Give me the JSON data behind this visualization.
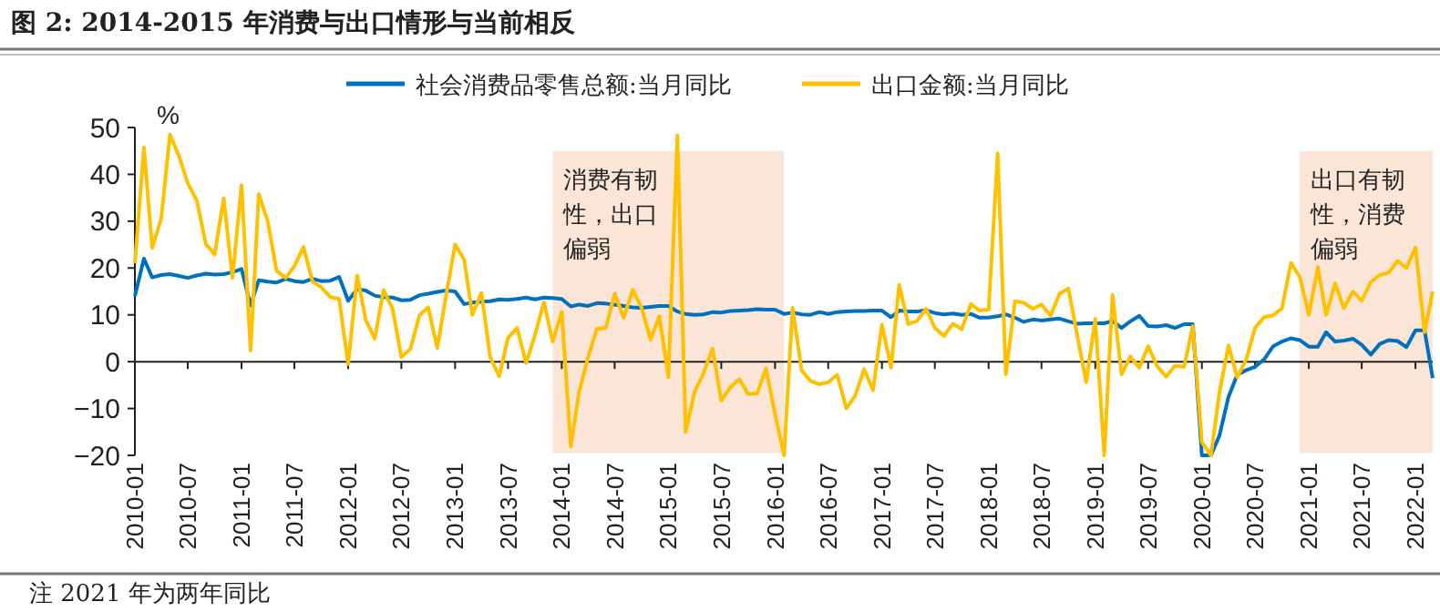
{
  "chart_data": {
    "type": "line",
    "title": "图 2: 2014-2015 年消费与出口情形与当前相反",
    "ylabel": "%",
    "annotations": [
      "注 2021 年为两年同比"
    ],
    "legend": "top",
    "line_style": "solid",
    "marker": "none",
    "xlim": [
      "2010-01",
      "2022-03"
    ],
    "x": [
      "2010-01",
      "2010-02",
      "2010-03",
      "2010-04",
      "2010-05",
      "2010-06",
      "2010-07",
      "2010-08",
      "2010-09",
      "2010-10",
      "2010-11",
      "2010-12",
      "2011-01",
      "2011-02",
      "2011-03",
      "2011-04",
      "2011-05",
      "2011-06",
      "2011-07",
      "2011-08",
      "2011-09",
      "2011-10",
      "2011-11",
      "2011-12",
      "2012-01",
      "2012-02",
      "2012-03",
      "2012-04",
      "2012-05",
      "2012-06",
      "2012-07",
      "2012-08",
      "2012-09",
      "2012-10",
      "2012-11",
      "2012-12",
      "2013-01",
      "2013-02",
      "2013-03",
      "2013-04",
      "2013-05",
      "2013-06",
      "2013-07",
      "2013-08",
      "2013-09",
      "2013-10",
      "2013-11",
      "2013-12",
      "2014-01",
      "2014-02",
      "2014-03",
      "2014-04",
      "2014-05",
      "2014-06",
      "2014-07",
      "2014-08",
      "2014-09",
      "2014-10",
      "2014-11",
      "2014-12",
      "2015-01",
      "2015-02",
      "2015-03",
      "2015-04",
      "2015-05",
      "2015-06",
      "2015-07",
      "2015-08",
      "2015-09",
      "2015-10",
      "2015-11",
      "2015-12",
      "2016-01",
      "2016-02",
      "2016-03",
      "2016-04",
      "2016-05",
      "2016-06",
      "2016-07",
      "2016-08",
      "2016-09",
      "2016-10",
      "2016-11",
      "2016-12",
      "2017-01",
      "2017-02",
      "2017-03",
      "2017-04",
      "2017-05",
      "2017-06",
      "2017-07",
      "2017-08",
      "2017-09",
      "2017-10",
      "2017-11",
      "2017-12",
      "2018-01",
      "2018-02",
      "2018-03",
      "2018-04",
      "2018-05",
      "2018-06",
      "2018-07",
      "2018-08",
      "2018-09",
      "2018-10",
      "2018-11",
      "2018-12",
      "2019-01",
      "2019-02",
      "2019-03",
      "2019-04",
      "2019-05",
      "2019-06",
      "2019-07",
      "2019-08",
      "2019-09",
      "2019-10",
      "2019-11",
      "2019-12",
      "2020-01",
      "2020-02",
      "2020-03",
      "2020-04",
      "2020-05",
      "2020-06",
      "2020-07",
      "2020-08",
      "2020-09",
      "2020-10",
      "2020-11",
      "2020-12",
      "2021-01",
      "2021-02",
      "2021-03",
      "2021-04",
      "2021-05",
      "2021-06",
      "2021-07",
      "2021-08",
      "2021-09",
      "2021-10",
      "2021-11",
      "2021-12",
      "2022-01",
      "2022-02",
      "2022-03"
    ],
    "xticks": [
      "2010-01",
      "2010-07",
      "2011-01",
      "2011-07",
      "2012-01",
      "2012-07",
      "2013-01",
      "2013-07",
      "2014-01",
      "2014-07",
      "2015-01",
      "2015-07",
      "2016-01",
      "2016-07",
      "2017-01",
      "2017-07",
      "2018-01",
      "2018-07",
      "2019-01",
      "2019-07",
      "2020-01",
      "2020-07",
      "2021-01",
      "2021-07",
      "2022-01"
    ],
    "ylim": [
      -20,
      50
    ],
    "yticks": [
      -20,
      -10,
      0,
      10,
      20,
      30,
      40,
      50
    ],
    "bands": [
      {
        "axis": "x",
        "from": "2013-12",
        "to": "2016-02",
        "label": "消费有韧性，出口偏弱",
        "color": "#fbe5d6"
      },
      {
        "axis": "x",
        "from": "2020-12",
        "to": "2022-03",
        "label": "出口有韧性，消费偏弱",
        "color": "#fbe5d6"
      }
    ],
    "series": [
      {
        "name": "社会消费品零售总额:当月同比",
        "color": "#0070c0",
        "values": [
          14,
          22,
          18,
          18.5,
          18.7,
          18.3,
          17.9,
          18.4,
          18.8,
          18.6,
          18.7,
          19.1,
          19.8,
          12,
          17.4,
          17.1,
          16.9,
          17.7,
          17.2,
          17,
          17.7,
          17.2,
          17.3,
          18.1,
          13,
          15.5,
          15.2,
          14.1,
          13.8,
          13.7,
          13.1,
          13.2,
          14.2,
          14.5,
          14.9,
          15.2,
          15,
          12.3,
          12.6,
          12.8,
          12.9,
          13.3,
          13.2,
          13.4,
          13.7,
          13.3,
          13.7,
          13.6,
          13.4,
          11.8,
          12.2,
          11.9,
          12.5,
          12.4,
          12.2,
          11.9,
          11.6,
          11.5,
          11.7,
          11.9,
          11.9,
          10.7,
          10.2,
          10,
          10.1,
          10.6,
          10.5,
          10.8,
          10.9,
          11,
          11.2,
          11.1,
          11.1,
          10.2,
          10.5,
          10.1,
          10,
          10.6,
          10.2,
          10.6,
          10.7,
          10.8,
          10.8,
          10.9,
          10.9,
          9.5,
          10.9,
          10.7,
          10.7,
          11,
          10.4,
          10.1,
          10.3,
          10,
          10.2,
          9.4,
          9.4,
          9.7,
          10.1,
          9.4,
          8.5,
          9,
          8.8,
          9,
          9.2,
          8.6,
          8.1,
          8.2,
          8.2,
          8.2,
          8.7,
          7.2,
          8.6,
          9.8,
          7.6,
          7.5,
          7.8,
          7.2,
          8,
          8,
          -20,
          -20,
          -15.8,
          -7.5,
          -2.8,
          -1.8,
          -1.1,
          0.5,
          3.3,
          4.3,
          5,
          4.6,
          3.2,
          3.2,
          6.3,
          4.3,
          4.5,
          4.9,
          3.6,
          1.5,
          3.8,
          4.6,
          4.4,
          3.1,
          6.7,
          6.7,
          -3.5
        ]
      },
      {
        "name": "出口金额:当月同比",
        "color": "#ffc000",
        "values": [
          21,
          45.7,
          24.3,
          30.5,
          48.5,
          43.9,
          38.1,
          34.4,
          25.1,
          22.9,
          34.9,
          17.9,
          37.7,
          2.4,
          35.8,
          29.9,
          19.4,
          17.9,
          20.4,
          24.5,
          17.1,
          15.9,
          13.8,
          13.4,
          -0.5,
          18.4,
          8.9,
          4.9,
          15.3,
          11.3,
          1,
          2.7,
          9.9,
          11.6,
          2.9,
          14.1,
          25,
          21.8,
          10,
          14.7,
          1,
          -3.1,
          5.1,
          7.2,
          -0.3,
          5.6,
          12.7,
          4.3,
          10.6,
          -18.1,
          -6.6,
          0.9,
          7,
          7.2,
          14.5,
          9.4,
          15.3,
          11.6,
          4.7,
          9.7,
          -3.3,
          48.3,
          -15,
          -6.4,
          -2.5,
          2.8,
          -8.3,
          -5.5,
          -3.7,
          -6.9,
          -6.8,
          -1.4,
          -11.2,
          -20,
          11.5,
          -1.8,
          -4.1,
          -4.8,
          -4.4,
          -2.8,
          -10,
          -7.3,
          -1.6,
          -6.1,
          7.9,
          -1.3,
          16.4,
          8,
          8.7,
          11.3,
          7.2,
          5.5,
          8.1,
          6.9,
          12.3,
          10.9,
          11.1,
          44.5,
          -2.7,
          12.9,
          12.6,
          11.3,
          12.2,
          9.8,
          14.5,
          15.6,
          5.4,
          -4.4,
          9.1,
          -20,
          14.2,
          -2.7,
          1.1,
          -1.3,
          3.3,
          -1,
          -3.2,
          -0.9,
          -1.1,
          7.6,
          -17.2,
          -20,
          -6.6,
          3.5,
          -3.3,
          0.5,
          7.2,
          9.5,
          9.9,
          11.4,
          21.1,
          18.1,
          10,
          20.2,
          10,
          16.7,
          11.4,
          15,
          13,
          17,
          18.5,
          19,
          21.5,
          20,
          24.4,
          6.3,
          15
        ]
      }
    ]
  }
}
